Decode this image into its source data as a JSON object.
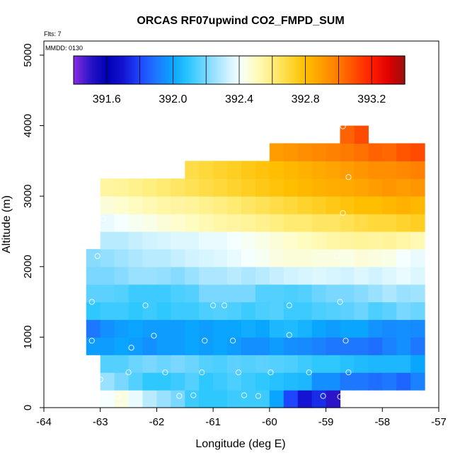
{
  "chart_data": {
    "type": "heatmap",
    "title": "ORCAS RF07upwind CO2_FMPD_SUM",
    "xlabel": "Longitude (deg E)",
    "ylabel": "Altitude (m)",
    "xlim": [
      -64,
      -57
    ],
    "ylim": [
      0,
      5200
    ],
    "xticks": [
      -64,
      -63,
      -62,
      -61,
      -60,
      -59,
      -58,
      -57
    ],
    "yticks": [
      0,
      1000,
      2000,
      3000,
      4000,
      5000
    ],
    "annotations": {
      "flts": "Flts: 7",
      "mmdd": "MMDD: 0130"
    },
    "colorbar": {
      "min": 391.4,
      "max": 393.4,
      "tick_values": [
        391.6,
        392.0,
        392.4,
        392.8,
        393.2
      ],
      "tick_labels": [
        "391.6",
        "392.0",
        "392.4",
        "392.8",
        "393.2"
      ],
      "colors": [
        "#8a2be2",
        "#2a16c8",
        "#0000b4",
        "#1414d2",
        "#1e46ff",
        "#1e78ff",
        "#0aa5ff",
        "#2ec8ff",
        "#7ad7ff",
        "#b9ebff",
        "#f5ffff",
        "#fffcc0",
        "#ffee80",
        "#ffd83a",
        "#ffbe00",
        "#ff9d00",
        "#ff7a00",
        "#ff4b00",
        "#ff1e00",
        "#e10000",
        "#9b1010"
      ]
    },
    "grid": {
      "lon_step": 0.25,
      "alt_step": 250,
      "rows": [
        {
          "alt": 0,
          "lon_start": -63.0,
          "values": [
            392.4,
            392.45,
            392.38,
            392.3,
            392.25,
            392.2,
            392.12,
            392.1,
            392.1,
            392.12,
            392.12,
            392.12,
            392.0,
            391.8,
            391.7,
            391.75,
            391.5
          ]
        },
        {
          "alt": 250,
          "lon_start": -63.0,
          "values": [
            392.25,
            392.2,
            392.15,
            392.1,
            392.1,
            392.12,
            392.15,
            392.1,
            392.12,
            392.14,
            392.12,
            392.1,
            392.08,
            392.06,
            392.05,
            391.95,
            391.95,
            391.9,
            391.9,
            391.88,
            391.9,
            391.86,
            391.92
          ]
        },
        {
          "alt": 500,
          "lon_start": -63.0,
          "values": [
            392.15,
            392.15,
            392.18,
            392.2,
            392.18,
            392.2,
            392.18,
            392.15,
            392.14,
            392.16,
            392.15,
            392.16,
            392.15,
            392.14,
            392.12,
            392.1,
            392.1,
            392.08,
            392.06,
            392.05,
            392.05,
            392.05,
            392.0
          ]
        },
        {
          "alt": 750,
          "lon_start": -63.25,
          "values": [
            391.98,
            391.98,
            392.0,
            391.98,
            391.95,
            391.98,
            391.98,
            392.0,
            391.98,
            392.0,
            391.98,
            391.95,
            391.95,
            391.98,
            391.95,
            391.94,
            391.92,
            391.9,
            391.9,
            391.9,
            391.88,
            391.92,
            391.95,
            391.9
          ]
        },
        {
          "alt": 1000,
          "lon_start": -63.25,
          "values": [
            391.9,
            391.95,
            391.98,
            392.0,
            391.98,
            391.98,
            391.98,
            392.0,
            391.98,
            392.0,
            392.0,
            392.02,
            392.0,
            392.05,
            392.06,
            392.04,
            392.0,
            391.98,
            392.0,
            392.0,
            391.96,
            391.94,
            391.95,
            391.94
          ]
        },
        {
          "alt": 1250,
          "lon_start": -63.25,
          "values": [
            392.1,
            392.12,
            392.12,
            392.1,
            392.12,
            392.1,
            392.12,
            392.12,
            392.14,
            392.15,
            392.14,
            392.12,
            392.14,
            392.15,
            392.12,
            392.12,
            392.14,
            392.15,
            392.16,
            392.18,
            392.14,
            392.16,
            392.2,
            392.18
          ]
        },
        {
          "alt": 1500,
          "lon_start": -63.25,
          "values": [
            392.16,
            392.16,
            392.15,
            392.12,
            392.12,
            392.12,
            392.14,
            392.15,
            392.2,
            392.2,
            392.2,
            392.2,
            392.15,
            392.15,
            392.14,
            392.15,
            392.18,
            392.2,
            392.2,
            392.22,
            392.25,
            392.28,
            392.25,
            392.26
          ]
        },
        {
          "alt": 1750,
          "lon_start": -63.25,
          "values": [
            392.2,
            392.2,
            392.22,
            392.25,
            392.25,
            392.24,
            392.22,
            392.25,
            392.28,
            392.28,
            392.3,
            392.28,
            392.3,
            392.32,
            392.34,
            392.35,
            392.36,
            392.35,
            392.34,
            392.36,
            392.34,
            392.36,
            392.38,
            392.36
          ]
        },
        {
          "alt": 2000,
          "lon_start": -63.25,
          "values": [
            392.22,
            392.24,
            392.26,
            392.28,
            392.3,
            392.3,
            392.32,
            392.34,
            392.35,
            392.36,
            392.38,
            392.4,
            392.42,
            392.45,
            392.46,
            392.46,
            392.45,
            392.45,
            392.44,
            392.46,
            392.45,
            392.44,
            392.4,
            392.38
          ]
        },
        {
          "alt": 2250,
          "lon_start": -63.0,
          "values": [
            392.3,
            392.3,
            392.32,
            392.34,
            392.35,
            392.36,
            392.36,
            392.38,
            392.38,
            392.4,
            392.42,
            392.44,
            392.46,
            392.48,
            392.5,
            392.52,
            392.54,
            392.55,
            392.56,
            392.55,
            392.56,
            392.54,
            392.52
          ]
        },
        {
          "alt": 2500,
          "lon_start": -63.0,
          "values": [
            392.38,
            392.4,
            392.42,
            392.44,
            392.46,
            392.48,
            392.5,
            392.52,
            392.54,
            392.55,
            392.56,
            392.58,
            392.6,
            392.62,
            392.62,
            392.64,
            392.64,
            392.66,
            392.68,
            392.7,
            392.7,
            392.72,
            392.74
          ]
        },
        {
          "alt": 2750,
          "lon_start": -63.0,
          "values": [
            392.46,
            392.48,
            392.5,
            392.52,
            392.54,
            392.55,
            392.56,
            392.58,
            392.6,
            392.62,
            392.64,
            392.66,
            392.68,
            392.7,
            392.72,
            392.74,
            392.76,
            392.78,
            392.8,
            392.8,
            392.82,
            392.84,
            392.82
          ]
        },
        {
          "alt": 3000,
          "lon_start": -63.0,
          "values": [
            392.55,
            392.56,
            392.58,
            392.6,
            392.62,
            392.64,
            392.66,
            392.68,
            392.7,
            392.72,
            392.74,
            392.76,
            392.78,
            392.8,
            392.82,
            392.84,
            392.85,
            392.86,
            392.88,
            392.9,
            392.92,
            392.9,
            392.92
          ]
        },
        {
          "alt": 3250,
          "lon_start": -61.5,
          "values": [
            392.68,
            392.7,
            392.72,
            392.74,
            392.76,
            392.78,
            392.8,
            392.82,
            392.84,
            392.86,
            392.88,
            392.9,
            392.92,
            392.94,
            392.94,
            392.96,
            392.98
          ]
        },
        {
          "alt": 3500,
          "lon_start": -60.0,
          "values": [
            392.9,
            392.92,
            392.94,
            392.96,
            392.98,
            393.0,
            393.02,
            393.05,
            393.04,
            393.08,
            393.1
          ]
        },
        {
          "alt": 3750,
          "lon_start": -58.75,
          "values": [
            393.05,
            393.1
          ]
        }
      ]
    },
    "observations": [
      {
        "lon": -62.95,
        "alt": 170
      },
      {
        "lon": -62.7,
        "alt": 160
      },
      {
        "lon": -61.6,
        "alt": 165
      },
      {
        "lon": -61.35,
        "alt": 175
      },
      {
        "lon": -60.45,
        "alt": 175
      },
      {
        "lon": -60.2,
        "alt": 165
      },
      {
        "lon": -59.05,
        "alt": 165
      },
      {
        "lon": -58.75,
        "alt": 155
      },
      {
        "lon": -63.0,
        "alt": 400
      },
      {
        "lon": -62.5,
        "alt": 500
      },
      {
        "lon": -61.85,
        "alt": 500
      },
      {
        "lon": -61.2,
        "alt": 500
      },
      {
        "lon": -60.55,
        "alt": 500
      },
      {
        "lon": -59.98,
        "alt": 500
      },
      {
        "lon": -59.3,
        "alt": 500
      },
      {
        "lon": -58.6,
        "alt": 500
      },
      {
        "lon": -62.45,
        "alt": 850
      },
      {
        "lon": -63.15,
        "alt": 950
      },
      {
        "lon": -61.15,
        "alt": 950
      },
      {
        "lon": -60.65,
        "alt": 950
      },
      {
        "lon": -58.65,
        "alt": 950
      },
      {
        "lon": -62.05,
        "alt": 1020
      },
      {
        "lon": -59.65,
        "alt": 1030
      },
      {
        "lon": -63.15,
        "alt": 1500
      },
      {
        "lon": -62.2,
        "alt": 1450
      },
      {
        "lon": -61.0,
        "alt": 1450
      },
      {
        "lon": -60.8,
        "alt": 1450
      },
      {
        "lon": -59.65,
        "alt": 1450
      },
      {
        "lon": -58.75,
        "alt": 1500
      },
      {
        "lon": -63.05,
        "alt": 2150
      },
      {
        "lon": -58.8,
        "alt": 2150
      },
      {
        "lon": -62.95,
        "alt": 2680
      },
      {
        "lon": -58.7,
        "alt": 2760
      },
      {
        "lon": -58.6,
        "alt": 3270
      },
      {
        "lon": -58.7,
        "alt": 3990
      }
    ]
  }
}
